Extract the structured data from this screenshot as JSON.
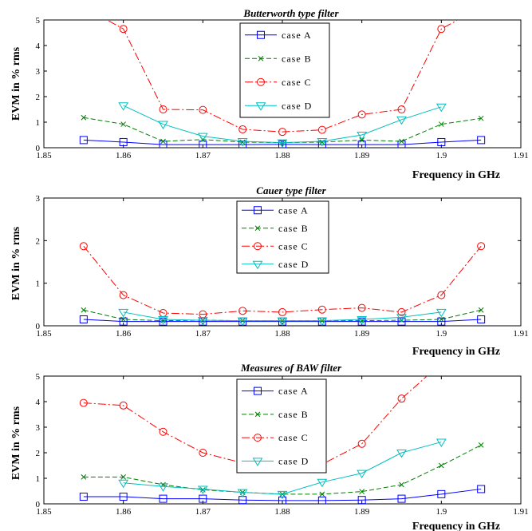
{
  "chart_data": [
    {
      "type": "line",
      "title": "Butterworth type filter",
      "xlabel": "Frequency in GHz",
      "ylabel": "EVM in % rms",
      "xlim": [
        1.85,
        1.91
      ],
      "ylim": [
        0,
        5
      ],
      "xticks": [
        "1.85",
        "1.86",
        "1.87",
        "1.88",
        "1.89",
        "1.9",
        "1.91"
      ],
      "yticks": [
        "0",
        "1",
        "2",
        "3",
        "4",
        "5"
      ],
      "legend_position": "top-center",
      "x": [
        1.855,
        1.86,
        1.865,
        1.87,
        1.875,
        1.88,
        1.885,
        1.89,
        1.895,
        1.9,
        1.905
      ],
      "series": [
        {
          "name": "case A",
          "color": "#0000ff",
          "line": "solid",
          "marker": "square",
          "values": [
            0.3,
            0.22,
            0.12,
            0.12,
            0.12,
            0.13,
            0.12,
            0.12,
            0.12,
            0.22,
            0.3
          ]
        },
        {
          "name": "case B",
          "color": "#008000",
          "line": "dashed",
          "marker": "x",
          "values": [
            1.18,
            0.92,
            0.25,
            0.32,
            0.22,
            0.2,
            0.22,
            0.3,
            0.25,
            0.92,
            1.15
          ]
        },
        {
          "name": "case C",
          "color": "#ff0000",
          "line": "dashdot",
          "marker": "circle",
          "values": [
            5.5,
            4.65,
            1.5,
            1.48,
            0.72,
            0.62,
            0.7,
            1.3,
            1.5,
            4.65,
            5.5
          ]
        },
        {
          "name": "case D",
          "color": "#00bfbf",
          "line": "solid",
          "marker": "triangle-down",
          "values": [
            null,
            1.65,
            0.92,
            0.45,
            0.25,
            0.2,
            0.25,
            0.5,
            1.1,
            1.6,
            null
          ]
        }
      ]
    },
    {
      "type": "line",
      "title": "Cauer type filter",
      "xlabel": "Frequency in GHz",
      "ylabel": "EVM in % rms",
      "xlim": [
        1.85,
        1.91
      ],
      "ylim": [
        0,
        3
      ],
      "xticks": [
        "1.85",
        "1.86",
        "1.87",
        "1.88",
        "1.89",
        "1.9",
        "1.91"
      ],
      "yticks": [
        "0",
        "1",
        "2",
        "3"
      ],
      "legend_position": "top-center",
      "x": [
        1.855,
        1.86,
        1.865,
        1.87,
        1.875,
        1.88,
        1.885,
        1.89,
        1.895,
        1.9,
        1.905
      ],
      "series": [
        {
          "name": "case A",
          "color": "#0000ff",
          "line": "solid",
          "marker": "square",
          "values": [
            0.15,
            0.1,
            0.1,
            0.1,
            0.1,
            0.1,
            0.1,
            0.1,
            0.1,
            0.1,
            0.15
          ]
        },
        {
          "name": "case B",
          "color": "#008000",
          "line": "dashed",
          "marker": "x",
          "values": [
            0.37,
            0.15,
            0.12,
            0.13,
            0.12,
            0.12,
            0.12,
            0.12,
            0.13,
            0.15,
            0.37
          ]
        },
        {
          "name": "case C",
          "color": "#ff0000",
          "line": "dashdot",
          "marker": "circle",
          "values": [
            1.87,
            0.72,
            0.3,
            0.27,
            0.35,
            0.32,
            0.38,
            0.42,
            0.32,
            0.72,
            1.87
          ]
        },
        {
          "name": "case D",
          "color": "#00bfbf",
          "line": "solid",
          "marker": "triangle-down",
          "values": [
            null,
            0.32,
            0.15,
            0.13,
            0.12,
            0.12,
            0.12,
            0.15,
            0.2,
            0.32,
            null
          ]
        }
      ]
    },
    {
      "type": "line",
      "title": "Measures of BAW filter",
      "xlabel": "Frequency in GHz",
      "ylabel": "EVM in % rms",
      "xlim": [
        1.85,
        1.91
      ],
      "ylim": [
        0,
        5
      ],
      "xticks": [
        "1.85",
        "1.86",
        "1.87",
        "1.88",
        "1.89",
        "1.9",
        "1.91"
      ],
      "yticks": [
        "0",
        "1",
        "2",
        "3",
        "4",
        "5"
      ],
      "legend_position": "top-center",
      "x": [
        1.855,
        1.86,
        1.865,
        1.87,
        1.875,
        1.88,
        1.885,
        1.89,
        1.895,
        1.9,
        1.905
      ],
      "series": [
        {
          "name": "case A",
          "color": "#0000ff",
          "line": "solid",
          "marker": "square",
          "values": [
            0.28,
            0.28,
            0.2,
            0.2,
            0.15,
            0.13,
            0.13,
            0.15,
            0.2,
            0.38,
            0.58
          ]
        },
        {
          "name": "case B",
          "color": "#008000",
          "line": "dashed",
          "marker": "x",
          "values": [
            1.05,
            1.05,
            0.75,
            0.55,
            0.45,
            0.38,
            0.38,
            0.48,
            0.75,
            1.5,
            2.3
          ]
        },
        {
          "name": "case C",
          "color": "#ff0000",
          "line": "dashdot",
          "marker": "circle",
          "values": [
            3.95,
            3.85,
            2.82,
            2.0,
            1.6,
            1.52,
            1.55,
            2.35,
            4.12,
            5.5,
            null
          ]
        },
        {
          "name": "case D",
          "color": "#00bfbf",
          "line": "solid",
          "marker": "triangle-down",
          "values": [
            null,
            0.82,
            0.68,
            0.58,
            0.45,
            0.38,
            0.85,
            1.2,
            2.0,
            2.42,
            null
          ]
        }
      ]
    }
  ]
}
